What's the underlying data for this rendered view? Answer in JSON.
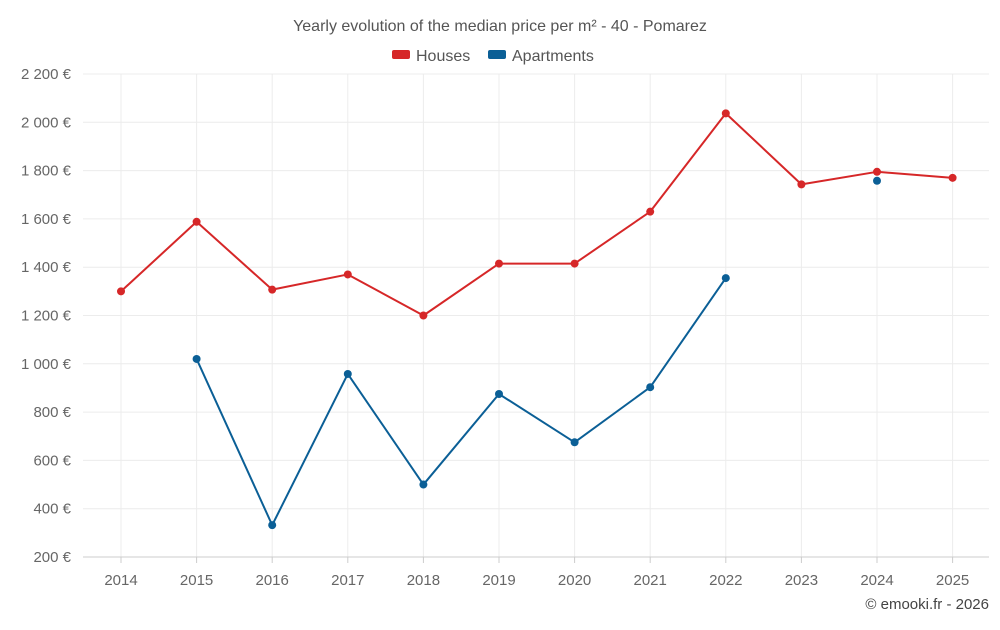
{
  "chart_data": {
    "type": "line",
    "title": "Yearly evolution of the median price per m² - 40 - Pomarez",
    "categories": [
      "2014",
      "2015",
      "2016",
      "2017",
      "2018",
      "2019",
      "2020",
      "2021",
      "2022",
      "2023",
      "2024",
      "2025"
    ],
    "series": [
      {
        "name": "Houses",
        "color": "#d62728",
        "values": [
          1300,
          1588,
          1307,
          1370,
          1200,
          1415,
          1415,
          1630,
          2037,
          1743,
          1795,
          1770
        ]
      },
      {
        "name": "Apartments",
        "color": "#0b5f96",
        "values": [
          null,
          1020,
          332,
          958,
          500,
          875,
          675,
          903,
          1355,
          null,
          1758,
          null
        ]
      }
    ],
    "ylim": [
      200,
      2200
    ],
    "yticks": [
      200,
      400,
      600,
      800,
      1000,
      1200,
      1400,
      1600,
      1800,
      2000,
      2200
    ],
    "ytick_labels": [
      "200 €",
      "400 €",
      "600 €",
      "800 €",
      "1 000 €",
      "1 200 €",
      "1 400 €",
      "1 600 €",
      "1 800 €",
      "2 000 €",
      "2 200 €"
    ],
    "xlabel": "",
    "ylabel": "",
    "grid": true,
    "legend_position": "top-center"
  },
  "credit": "© emooki.fr - 2026"
}
